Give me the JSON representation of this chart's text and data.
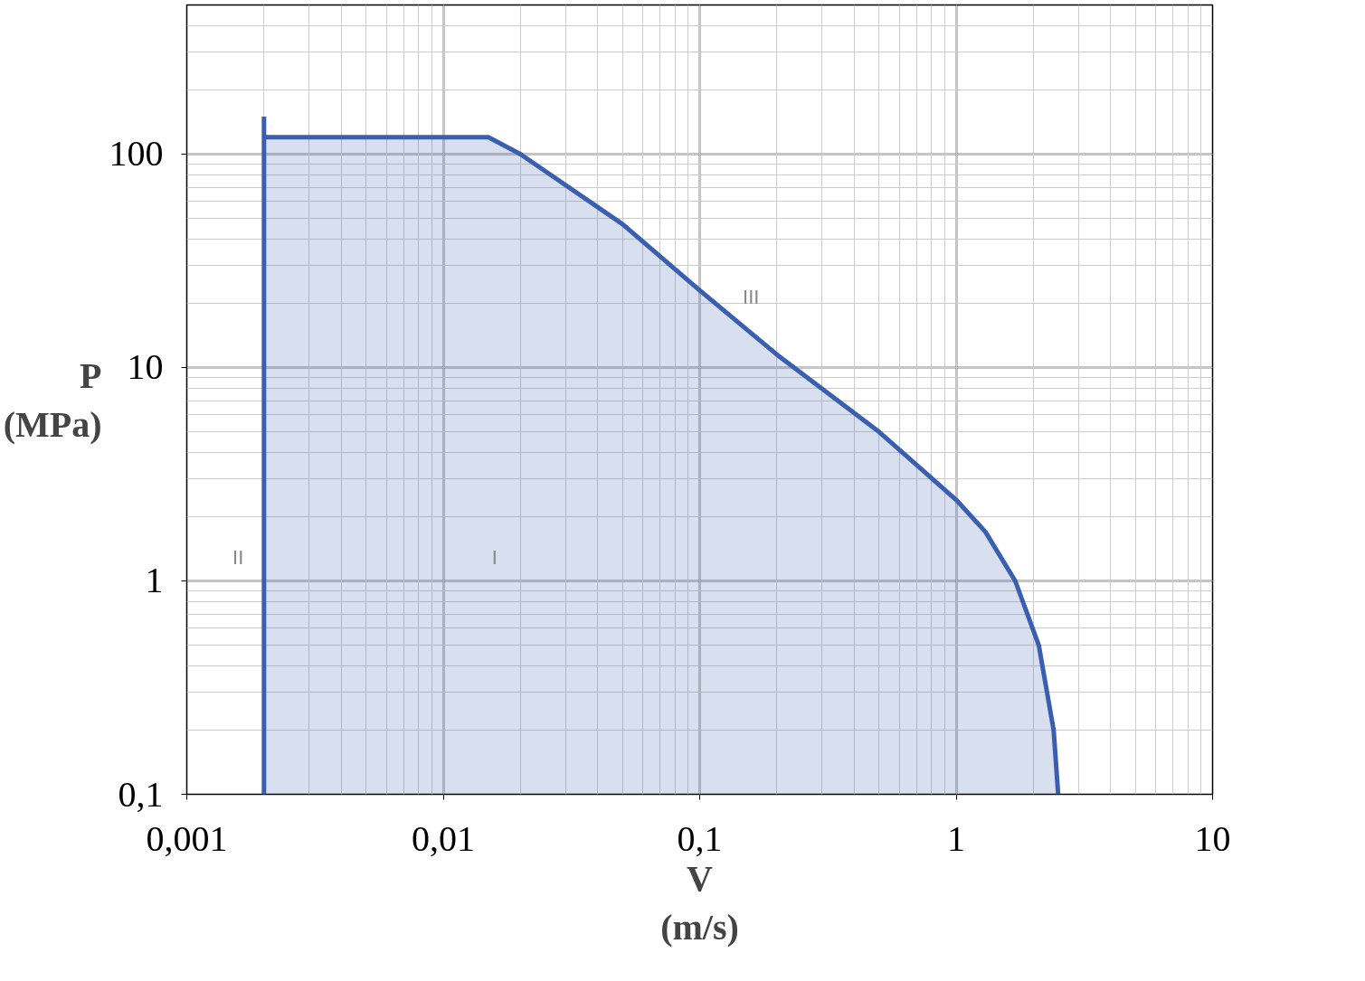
{
  "chart_data": {
    "type": "area",
    "ylabel": "P\n(MPa)",
    "xlabel": "V\n(m/s)",
    "log": "xy",
    "xlim": [
      0.001,
      10
    ],
    "ylim": [
      0.1,
      500
    ],
    "xticks": [
      {
        "value": 0.001,
        "label": "0,001"
      },
      {
        "value": 0.01,
        "label": "0,01"
      },
      {
        "value": 0.1,
        "label": "0,1"
      },
      1,
      10
    ],
    "yticks": [
      {
        "value": 0.1,
        "label": "0,1"
      },
      1,
      10,
      100
    ],
    "grid": true,
    "series": [
      {
        "color": "#3a5fb0",
        "x": [
          0.002,
          0.015,
          0.02,
          0.05,
          0.1,
          0.2,
          0.5,
          1,
          1.3,
          1.7,
          2.1,
          2.4,
          2.5
        ],
        "values": [
          120,
          120,
          100,
          47,
          23,
          11.5,
          5,
          2.4,
          1.7,
          1,
          0.5,
          0.2,
          0.1
        ]
      },
      {
        "type": "line",
        "color": "#3a5fb0",
        "x": [
          0.002,
          0.002
        ],
        "values": [
          0.1,
          150
        ]
      }
    ],
    "annotations": [
      "I",
      "II",
      "III"
    ]
  }
}
